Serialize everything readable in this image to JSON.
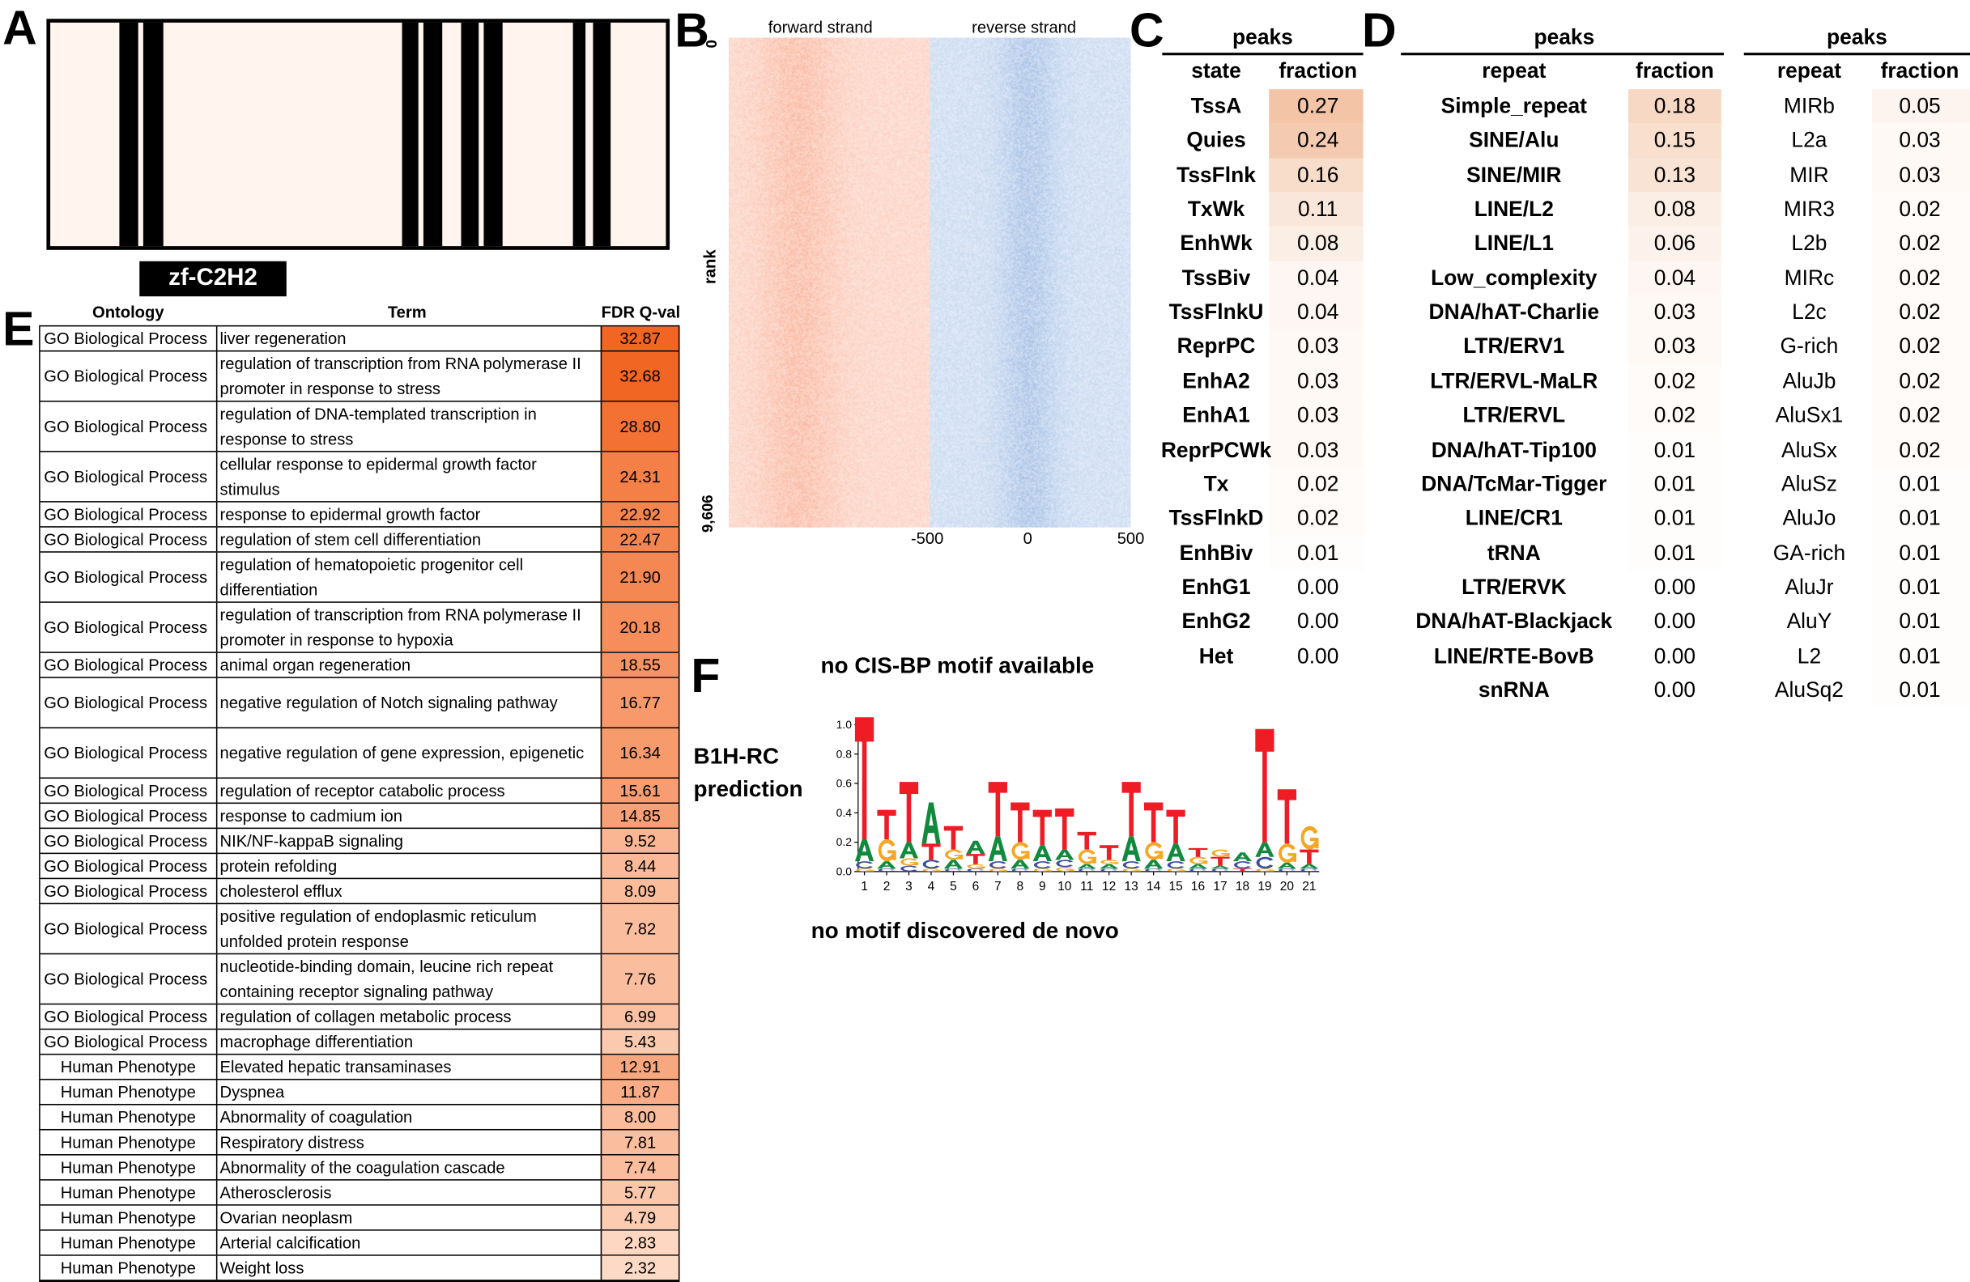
{
  "panel_labels": {
    "a": "A",
    "b": "B",
    "c": "C",
    "d": "D",
    "e": "E",
    "f": "F"
  },
  "panel_a": {
    "domain_label": "zf-C2H2",
    "colors": {
      "background": "#fff5ee",
      "domain": "#000000"
    }
  },
  "panel_b": {
    "forward_label": "forward strand",
    "reverse_label": "reverse strand",
    "y_axis_label": "rank",
    "y_ticks": [
      "0",
      "9,606"
    ],
    "x_ticks": [
      "-500",
      "0",
      "500"
    ],
    "colors": {
      "forward": "#e8684a",
      "reverse": "#4a86c8"
    }
  },
  "panel_c": {
    "group_header": "peaks",
    "columns": [
      "state",
      "fraction"
    ],
    "rows": [
      [
        "TssA",
        "0.27"
      ],
      [
        "Quies",
        "0.24"
      ],
      [
        "TssFlnk",
        "0.16"
      ],
      [
        "TxWk",
        "0.11"
      ],
      [
        "EnhWk",
        "0.08"
      ],
      [
        "TssBiv",
        "0.04"
      ],
      [
        "TssFlnkU",
        "0.04"
      ],
      [
        "ReprPC",
        "0.03"
      ],
      [
        "EnhA2",
        "0.03"
      ],
      [
        "EnhA1",
        "0.03"
      ],
      [
        "ReprPCWk",
        "0.03"
      ],
      [
        "Tx",
        "0.02"
      ],
      [
        "TssFlnkD",
        "0.02"
      ],
      [
        "EnhBiv",
        "0.01"
      ],
      [
        "EnhG1",
        "0.00"
      ],
      [
        "EnhG2",
        "0.00"
      ],
      [
        "Het",
        "0.00"
      ]
    ]
  },
  "panel_d": {
    "left": {
      "group_header": "peaks",
      "columns": [
        "repeat",
        "fraction"
      ],
      "rows": [
        [
          "Simple_repeat",
          "0.18"
        ],
        [
          "SINE/Alu",
          "0.15"
        ],
        [
          "SINE/MIR",
          "0.13"
        ],
        [
          "LINE/L2",
          "0.08"
        ],
        [
          "LINE/L1",
          "0.06"
        ],
        [
          "Low_complexity",
          "0.04"
        ],
        [
          "DNA/hAT-Charlie",
          "0.03"
        ],
        [
          "LTR/ERV1",
          "0.03"
        ],
        [
          "LTR/ERVL-MaLR",
          "0.02"
        ],
        [
          "LTR/ERVL",
          "0.02"
        ],
        [
          "DNA/hAT-Tip100",
          "0.01"
        ],
        [
          "DNA/TcMar-Tigger",
          "0.01"
        ],
        [
          "LINE/CR1",
          "0.01"
        ],
        [
          "tRNA",
          "0.01"
        ],
        [
          "LTR/ERVK",
          "0.00"
        ],
        [
          "DNA/hAT-Blackjack",
          "0.00"
        ],
        [
          "LINE/RTE-BovB",
          "0.00"
        ],
        [
          "snRNA",
          "0.00"
        ]
      ]
    },
    "right": {
      "group_header": "peaks",
      "columns": [
        "repeat",
        "fraction"
      ],
      "rows": [
        [
          "MIRb",
          "0.05"
        ],
        [
          "L2a",
          "0.03"
        ],
        [
          "MIR",
          "0.03"
        ],
        [
          "MIR3",
          "0.02"
        ],
        [
          "L2b",
          "0.02"
        ],
        [
          "MIRc",
          "0.02"
        ],
        [
          "L2c",
          "0.02"
        ],
        [
          "G-rich",
          "0.02"
        ],
        [
          "AluJb",
          "0.02"
        ],
        [
          "AluSx1",
          "0.02"
        ],
        [
          "AluSx",
          "0.02"
        ],
        [
          "AluSz",
          "0.01"
        ],
        [
          "AluJo",
          "0.01"
        ],
        [
          "GA-rich",
          "0.01"
        ],
        [
          "AluJr",
          "0.01"
        ],
        [
          "AluY",
          "0.01"
        ],
        [
          "L2",
          "0.01"
        ],
        [
          "AluSq2",
          "0.01"
        ]
      ]
    }
  },
  "panel_e": {
    "columns": [
      "Ontology",
      "Term",
      "FDR Q-val"
    ],
    "rows": [
      {
        "ontology": "GO Biological Process",
        "term": "liver regeneration",
        "fdr": "32.87",
        "lines": 1
      },
      {
        "ontology": "GO Biological Process",
        "term": "regulation of transcription from RNA polymerase II promoter in response to stress",
        "fdr": "32.68",
        "lines": 2
      },
      {
        "ontology": "GO Biological Process",
        "term": "regulation of DNA-templated transcription in response to stress",
        "fdr": "28.80",
        "lines": 2
      },
      {
        "ontology": "GO Biological Process",
        "term": "cellular response to epidermal growth factor stimulus",
        "fdr": "24.31",
        "lines": 2
      },
      {
        "ontology": "GO Biological Process",
        "term": "response to epidermal growth factor",
        "fdr": "22.92",
        "lines": 1
      },
      {
        "ontology": "GO Biological Process",
        "term": "regulation of stem cell differentiation",
        "fdr": "22.47",
        "lines": 1
      },
      {
        "ontology": "GO Biological Process",
        "term": "regulation of hematopoietic progenitor cell differentiation",
        "fdr": "21.90",
        "lines": 2
      },
      {
        "ontology": "GO Biological Process",
        "term": "regulation of transcription from RNA polymerase II promoter in response to hypoxia",
        "fdr": "20.18",
        "lines": 2
      },
      {
        "ontology": "GO Biological Process",
        "term": "animal organ regeneration",
        "fdr": "18.55",
        "lines": 1
      },
      {
        "ontology": "GO Biological Process",
        "term": "negative regulation of Notch signaling pathway",
        "fdr": "16.77",
        "lines": 2
      },
      {
        "ontology": "GO Biological Process",
        "term": "negative regulation of gene expression, epigenetic",
        "fdr": "16.34",
        "lines": 2
      },
      {
        "ontology": "GO Biological Process",
        "term": "regulation of receptor catabolic process",
        "fdr": "15.61",
        "lines": 1
      },
      {
        "ontology": "GO Biological Process",
        "term": "response to cadmium ion",
        "fdr": "14.85",
        "lines": 1
      },
      {
        "ontology": "GO Biological Process",
        "term": "NIK/NF-kappaB signaling",
        "fdr": "9.52",
        "lines": 1
      },
      {
        "ontology": "GO Biological Process",
        "term": "protein refolding",
        "fdr": "8.44",
        "lines": 1
      },
      {
        "ontology": "GO Biological Process",
        "term": "cholesterol efflux",
        "fdr": "8.09",
        "lines": 1
      },
      {
        "ontology": "GO Biological Process",
        "term": "positive regulation of endoplasmic reticulum unfolded protein response",
        "fdr": "7.82",
        "lines": 2
      },
      {
        "ontology": "GO Biological Process",
        "term": "nucleotide-binding domain, leucine rich repeat containing receptor signaling pathway",
        "fdr": "7.76",
        "lines": 2
      },
      {
        "ontology": "GO Biological Process",
        "term": "regulation of collagen metabolic process",
        "fdr": "6.99",
        "lines": 1
      },
      {
        "ontology": "GO Biological Process",
        "term": "macrophage differentiation",
        "fdr": "5.43",
        "lines": 1
      },
      {
        "ontology": "Human Phenotype",
        "term": "Elevated hepatic transaminases",
        "fdr": "12.91",
        "lines": 1
      },
      {
        "ontology": "Human Phenotype",
        "term": "Dyspnea",
        "fdr": "11.87",
        "lines": 1
      },
      {
        "ontology": "Human Phenotype",
        "term": "Abnormality of coagulation",
        "fdr": "8.00",
        "lines": 1
      },
      {
        "ontology": "Human Phenotype",
        "term": "Respiratory distress",
        "fdr": "7.81",
        "lines": 1
      },
      {
        "ontology": "Human Phenotype",
        "term": "Abnormality of the coagulation cascade",
        "fdr": "7.74",
        "lines": 1
      },
      {
        "ontology": "Human Phenotype",
        "term": "Atherosclerosis",
        "fdr": "5.77",
        "lines": 1
      },
      {
        "ontology": "Human Phenotype",
        "term": "Ovarian neoplasm",
        "fdr": "4.79",
        "lines": 1
      },
      {
        "ontology": "Human Phenotype",
        "term": "Arterial calcification",
        "fdr": "2.83",
        "lines": 1
      },
      {
        "ontology": "Human Phenotype",
        "term": "Weight loss",
        "fdr": "2.32",
        "lines": 1
      }
    ],
    "colors": {
      "low": "#fff0e4",
      "high": "#f26522"
    }
  },
  "panel_f": {
    "cisbp_text": "no CIS-BP motif available",
    "prediction_label_1": "B1H-RC",
    "prediction_label_2": "prediction",
    "denovo_text": "no motif discovered de novo",
    "chart_data": {
      "type": "sequence-logo",
      "y_ticks": [
        "0.0",
        "0.2",
        "0.4",
        "0.6",
        "0.8",
        "1.0"
      ],
      "ylim": [
        0,
        1.0
      ],
      "x_ticks": [
        "1",
        "2",
        "3",
        "4",
        "5",
        "6",
        "7",
        "8",
        "9",
        "10",
        "11",
        "12",
        "13",
        "14",
        "15",
        "16",
        "17",
        "18",
        "19",
        "20",
        "21"
      ],
      "letter_colors": {
        "A": "#118a3e",
        "C": "#3a4fa0",
        "G": "#f5a623",
        "T": "#ee1c25"
      },
      "positions": [
        [
          [
            "G",
            0.02
          ],
          [
            "C",
            0.05
          ],
          [
            "A",
            0.15
          ],
          [
            "T",
            0.83
          ]
        ],
        [
          [
            "C",
            0.02
          ],
          [
            "A",
            0.05
          ],
          [
            "G",
            0.15
          ],
          [
            "T",
            0.2
          ]
        ],
        [
          [
            "C",
            0.04
          ],
          [
            "G",
            0.05
          ],
          [
            "A",
            0.11
          ],
          [
            "T",
            0.41
          ]
        ],
        [
          [
            "G",
            0.02
          ],
          [
            "C",
            0.06
          ],
          [
            "T",
            0.11
          ],
          [
            "A",
            0.28
          ]
        ],
        [
          [
            "C",
            0.02
          ],
          [
            "A",
            0.06
          ],
          [
            "G",
            0.07
          ],
          [
            "T",
            0.16
          ]
        ],
        [
          [
            "C",
            0.02
          ],
          [
            "G",
            0.03
          ],
          [
            "T",
            0.07
          ],
          [
            "A",
            0.09
          ]
        ],
        [
          [
            "G",
            0.02
          ],
          [
            "C",
            0.05
          ],
          [
            "A",
            0.17
          ],
          [
            "T",
            0.37
          ]
        ],
        [
          [
            "C",
            0.02
          ],
          [
            "A",
            0.06
          ],
          [
            "G",
            0.12
          ],
          [
            "T",
            0.27
          ]
        ],
        [
          [
            "G",
            0.02
          ],
          [
            "C",
            0.05
          ],
          [
            "A",
            0.11
          ],
          [
            "T",
            0.24
          ]
        ],
        [
          [
            "G",
            0.03
          ],
          [
            "C",
            0.05
          ],
          [
            "A",
            0.07
          ],
          [
            "T",
            0.28
          ]
        ],
        [
          [
            "C",
            0.02
          ],
          [
            "A",
            0.03
          ],
          [
            "G",
            0.1
          ],
          [
            "T",
            0.12
          ]
        ],
        [
          [
            "C",
            0.02
          ],
          [
            "A",
            0.03
          ],
          [
            "G",
            0.03
          ],
          [
            "T",
            0.1
          ]
        ],
        [
          [
            "G",
            0.02
          ],
          [
            "C",
            0.05
          ],
          [
            "A",
            0.17
          ],
          [
            "T",
            0.37
          ]
        ],
        [
          [
            "C",
            0.02
          ],
          [
            "A",
            0.06
          ],
          [
            "G",
            0.12
          ],
          [
            "T",
            0.27
          ]
        ],
        [
          [
            "G",
            0.02
          ],
          [
            "C",
            0.05
          ],
          [
            "A",
            0.12
          ],
          [
            "T",
            0.23
          ]
        ],
        [
          [
            "C",
            0.02
          ],
          [
            "A",
            0.03
          ],
          [
            "G",
            0.05
          ],
          [
            "T",
            0.06
          ]
        ],
        [
          [
            "C",
            0.02
          ],
          [
            "A",
            0.02
          ],
          [
            "T",
            0.06
          ],
          [
            "G",
            0.05
          ]
        ],
        [
          [
            "T",
            0.02
          ],
          [
            "C",
            0.05
          ],
          [
            "A",
            0.06
          ]
        ],
        [
          [
            "G",
            0.02
          ],
          [
            "C",
            0.08
          ],
          [
            "A",
            0.1
          ],
          [
            "T",
            0.77
          ]
        ],
        [
          [
            "C",
            0.02
          ],
          [
            "A",
            0.04
          ],
          [
            "G",
            0.13
          ],
          [
            "T",
            0.37
          ]
        ],
        [
          [
            "C",
            0.02
          ],
          [
            "A",
            0.03
          ],
          [
            "T",
            0.1
          ],
          [
            "G",
            0.16
          ]
        ]
      ]
    }
  },
  "table_shade_color": "#f3c5a6"
}
